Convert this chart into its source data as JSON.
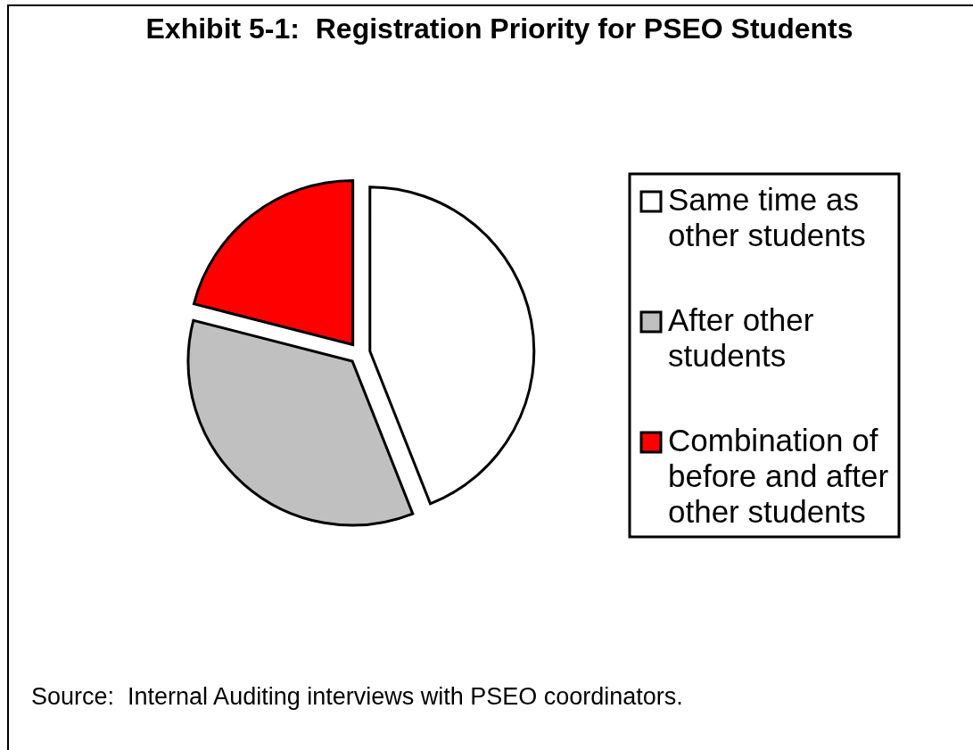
{
  "chart_data": {
    "type": "pie",
    "title": "Exhibit 5-1:  Registration Priority for PSEO Students",
    "categories": [
      "Same time as other students",
      "After other students",
      "Combination of before and after other students"
    ],
    "values": [
      44,
      35,
      21
    ],
    "colors": [
      "#ffffff",
      "#c0c0c0",
      "#ff0000"
    ],
    "legend": "right",
    "annotations": [
      "Source:  Internal Auditing interviews with PSEO coordinators."
    ]
  }
}
